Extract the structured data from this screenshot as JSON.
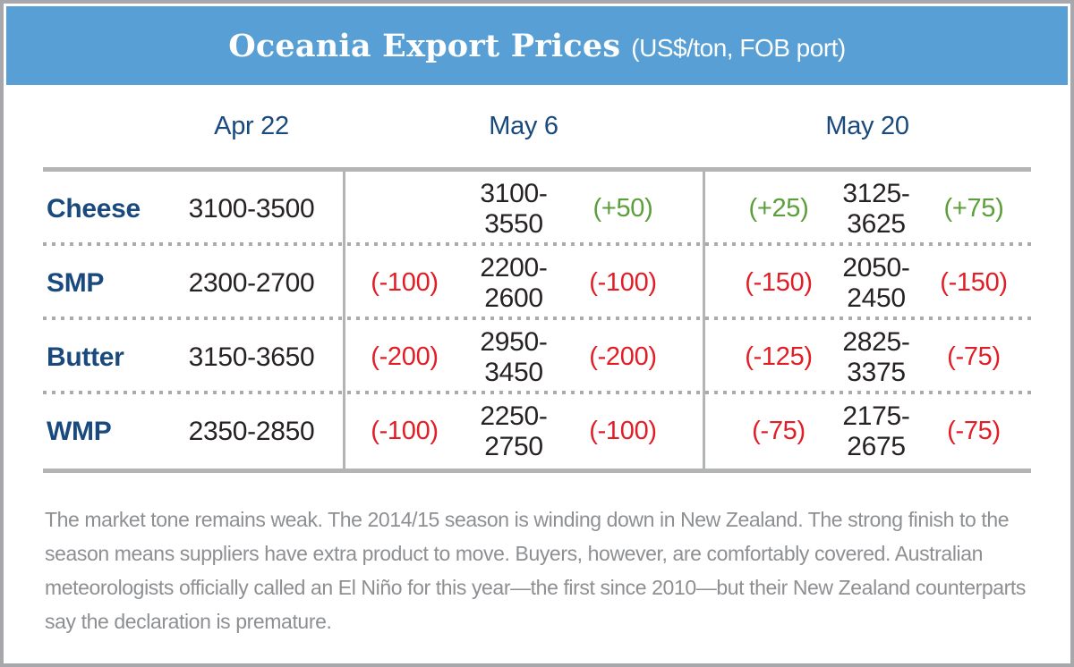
{
  "header": {
    "title": "Oceania Export Prices",
    "subtitle": "(US$/ton, FOB port)"
  },
  "columns": [
    "Apr 22",
    "May 6",
    "May 20"
  ],
  "rows": [
    {
      "label": "Cheese",
      "apr22": "3100-3500",
      "may6": {
        "pre": "",
        "range": "3100-3550",
        "post": "(+50)"
      },
      "may20": {
        "pre": "(+25)",
        "range": "3125-3625",
        "post": "(+75)"
      }
    },
    {
      "label": "SMP",
      "apr22": "2300-2700",
      "may6": {
        "pre": "(-100)",
        "range": "2200-2600",
        "post": "(-100)"
      },
      "may20": {
        "pre": "(-150)",
        "range": "2050-2450",
        "post": "(-150)"
      }
    },
    {
      "label": "Butter",
      "apr22": "3150-3650",
      "may6": {
        "pre": "(-200)",
        "range": "2950-3450",
        "post": "(-200)"
      },
      "may20": {
        "pre": "(-125)",
        "range": "2825-3375",
        "post": "(-75)"
      }
    },
    {
      "label": "WMP",
      "apr22": "2350-2850",
      "may6": {
        "pre": "(-100)",
        "range": "2250-2750",
        "post": "(-100)"
      },
      "may20": {
        "pre": "(-75)",
        "range": "2175-2675",
        "post": "(-75)"
      }
    }
  ],
  "footer": {
    "lines": [
      "The market tone remains weak. The 2014/15 season is winding down in New Zealand. The strong finish to the",
      "season means suppliers have extra product to move. Buyers, however, are comfortably covered. Australian",
      "meteorologists officially called an El Niño for this year—the first since 2010—but their New Zealand counterparts",
      "say the declaration is premature."
    ]
  },
  "colors": {
    "banner_blue": "#579fd4",
    "navy": "#1a4a7d",
    "green": "#5b9e3a",
    "red": "#e21d25",
    "text_dark": "#262223",
    "line_gray": "#b2b4b6",
    "footer_gray": "#8d8f92",
    "border_gray": "#a6a8ab"
  },
  "chart_data": {
    "type": "table",
    "title": "Oceania Export Prices (US$/ton, FOB port)",
    "columns": [
      "Product",
      "Apr 22",
      "May 6",
      "May 20"
    ],
    "rows": [
      [
        "Cheese",
        "3100-3500",
        "3100-3550 (+50)",
        "(+25) 3125-3625 (+75)"
      ],
      [
        "SMP",
        "2300-2700",
        "(-100) 2200-2600 (-100)",
        "(-150) 2050-2450 (-150)"
      ],
      [
        "Butter",
        "3150-3650",
        "(-200) 2950-3450 (-200)",
        "(-125) 2825-3375 (-75)"
      ],
      [
        "WMP",
        "2350-2850",
        "(-100) 2250-2750 (-100)",
        "(-75) 2175-2675 (-75)"
      ]
    ],
    "notes": "The market tone remains weak. The 2014/15 season is winding down in New Zealand. The strong finish to the season means suppliers have extra product to move. Buyers, however, are comfortably covered. Australian meteorologists officially called an El Niño for this year—the first since 2010—but their New Zealand counterparts say the declaration is premature."
  }
}
